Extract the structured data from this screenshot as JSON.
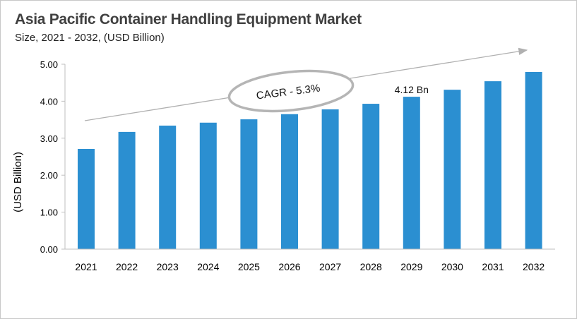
{
  "chart_data": {
    "type": "bar",
    "title": "Asia Pacific Container Handling Equipment Market",
    "subtitle": "Size, 2021 - 2032, (USD Billion)",
    "xlabel": "",
    "ylabel": "(USD Billion)",
    "ylim": [
      0,
      5
    ],
    "yticks": [
      "0.00",
      "1.00",
      "2.00",
      "3.00",
      "4.00",
      "5.00"
    ],
    "categories": [
      "2021",
      "2022",
      "2023",
      "2024",
      "2025",
      "2026",
      "2027",
      "2028",
      "2029",
      "2030",
      "2031",
      "2032"
    ],
    "values": [
      2.71,
      3.17,
      3.34,
      3.42,
      3.51,
      3.65,
      3.78,
      3.93,
      4.12,
      4.31,
      4.54,
      4.79
    ],
    "grid": false,
    "bar_color": "#2b8fd1",
    "annotations": {
      "cagr": "CAGR - 5.3%",
      "data_label": "4.12 Bn",
      "data_label_category": "2029"
    }
  }
}
